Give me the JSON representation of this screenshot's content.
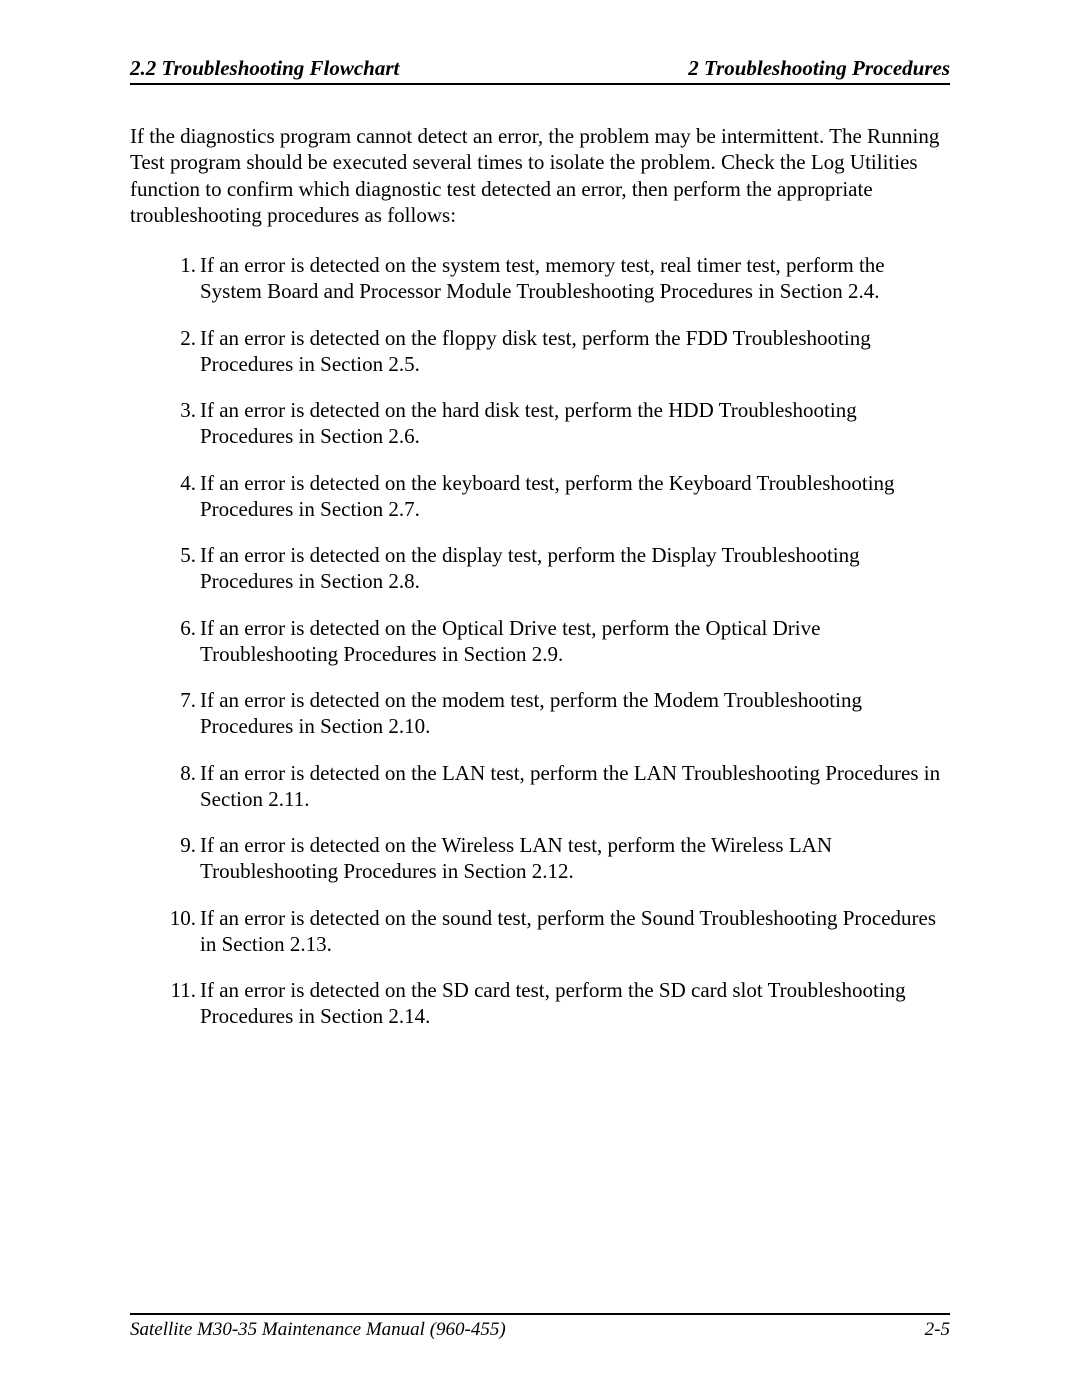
{
  "header": {
    "left": "2.2  Troubleshooting Flowchart",
    "right": "2  Troubleshooting Procedures"
  },
  "intro": "If the diagnostics program cannot detect an error, the problem may be intermittent.  The Running Test program should be executed several times to isolate the problem.  Check the Log Utilities function to confirm which diagnostic test detected an error, then perform the appropriate troubleshooting procedures as follows:",
  "list": [
    "If an error is detected on the system test, memory test, real timer test, perform the System Board and Processor Module Troubleshooting Procedures in Section 2.4.",
    "If an error is detected on the floppy disk test, perform the FDD Troubleshooting Procedures in Section 2.5.",
    "If an error is detected on the hard disk test, perform the HDD Troubleshooting Procedures in Section 2.6.",
    "If an error is detected on the keyboard test, perform the Keyboard Troubleshooting Procedures in Section 2.7.",
    "If an error is detected on the display test, perform the Display Troubleshooting Procedures in Section 2.8.",
    "If an error is detected on the Optical Drive test, perform the Optical Drive Troubleshooting Procedures in Section 2.9.",
    "If an error is detected on the modem test, perform the Modem Troubleshooting Procedures in Section 2.10.",
    "If an error is detected on the LAN test, perform the LAN Troubleshooting Procedures in Section 2.11.",
    "If an error is detected on the Wireless LAN test, perform the Wireless LAN Troubleshooting Procedures in Section 2.12.",
    "If an error is detected on the sound test, perform the Sound Troubleshooting Procedures in Section 2.13.",
    "If an error is detected on the SD card test, perform the SD card slot Troubleshooting Procedures in Section 2.14."
  ],
  "footer": {
    "left": "Satellite M30-35 Maintenance Manual (960-455)",
    "right": "2-5"
  }
}
